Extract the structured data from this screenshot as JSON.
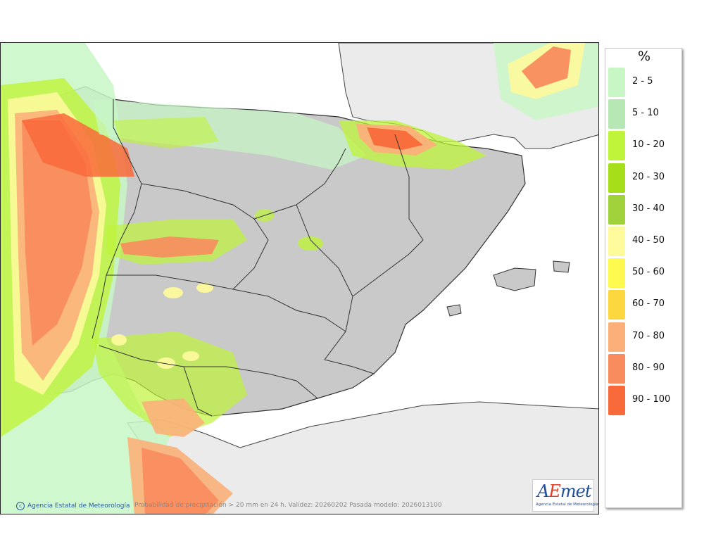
{
  "legend": {
    "unit": "%",
    "items": [
      {
        "label": "2 - 5",
        "color": "#c8f7c5"
      },
      {
        "label": "5 - 10",
        "color": "#b7e8b3"
      },
      {
        "label": "10 - 20",
        "color": "#bff43a"
      },
      {
        "label": "20 - 30",
        "color": "#a6df1a"
      },
      {
        "label": "30 - 40",
        "color": "#9ed13a"
      },
      {
        "label": "40 - 50",
        "color": "#fdfa9c"
      },
      {
        "label": "50 - 60",
        "color": "#fdf94e"
      },
      {
        "label": "60 - 70",
        "color": "#fcd73e"
      },
      {
        "label": "70 - 80",
        "color": "#fbb07a"
      },
      {
        "label": "80 - 90",
        "color": "#f98c5e"
      },
      {
        "label": "90 - 100",
        "color": "#f96a3a"
      }
    ]
  },
  "footer": {
    "credit": "Agencia Estatal de Meteorología",
    "caption": "Probabilidad de precipitación > 20 mm en 24 h. Validez: 20260202 Pasada modelo: 2026013100"
  },
  "logo": {
    "text_a": "A",
    "text_e": "E",
    "text_rest": "met",
    "subtitle": "Agencia Estatal de Meteorología"
  }
}
